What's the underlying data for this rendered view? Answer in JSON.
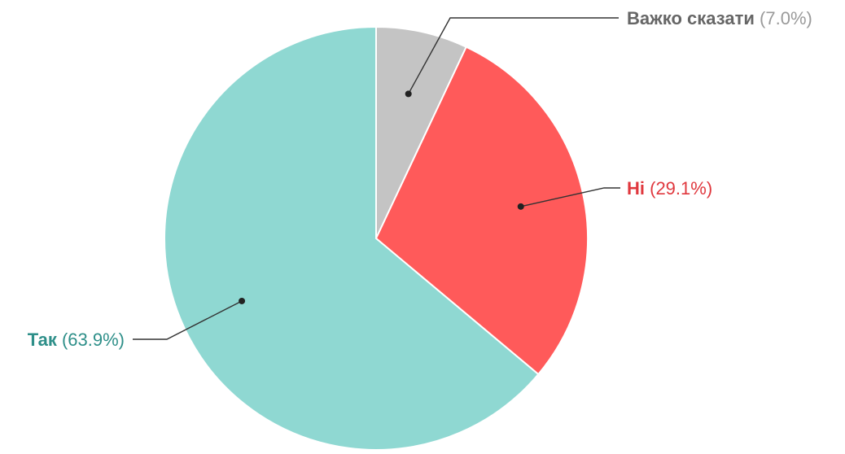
{
  "chart_data": {
    "type": "pie",
    "slices": [
      {
        "label": "Важко сказати",
        "value": 7.0,
        "value_text": "(7.0%)",
        "color": "#c4c4c4",
        "text_color": "#666666"
      },
      {
        "label": "Ні",
        "value": 29.1,
        "value_text": "(29.1%)",
        "color": "#ff5a5a",
        "text_color": "#e0383e"
      },
      {
        "label": "Так",
        "value": 63.9,
        "value_text": "(63.9%)",
        "color": "#8fd8d2",
        "text_color": "#2e8f89"
      }
    ],
    "start_angle": "12 o'clock",
    "direction": "clockwise",
    "legend": "none",
    "slice_border_color": "#ffffff"
  }
}
